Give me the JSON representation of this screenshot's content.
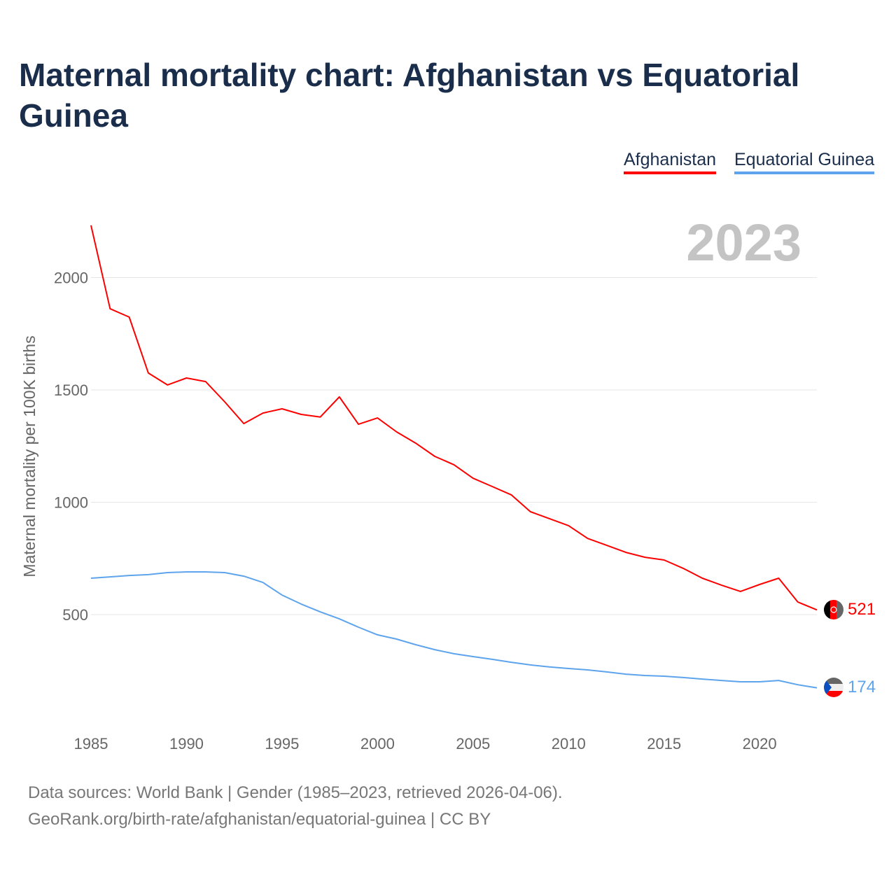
{
  "chart_data": {
    "type": "line",
    "title": "Maternal mortality chart: Afghanistan vs Equatorial Guinea",
    "xlabel": "",
    "ylabel": "Maternal mortality per 100K births",
    "year_label": "2023",
    "xlim": [
      1985,
      2023
    ],
    "ylim": [
      0,
      2250
    ],
    "grid": true,
    "legend_position": "top-right",
    "x_ticks": [
      1985,
      1990,
      1995,
      2000,
      2005,
      2010,
      2015,
      2020
    ],
    "y_ticks": [
      500,
      1000,
      1500,
      2000
    ],
    "x": [
      1985,
      1986,
      1987,
      1988,
      1989,
      1990,
      1991,
      1992,
      1993,
      1994,
      1995,
      1996,
      1997,
      1998,
      1999,
      2000,
      2001,
      2002,
      2003,
      2004,
      2005,
      2006,
      2007,
      2008,
      2009,
      2010,
      2011,
      2012,
      2013,
      2014,
      2015,
      2016,
      2017,
      2018,
      2019,
      2020,
      2021,
      2022,
      2023
    ],
    "series": [
      {
        "name": "Afghanistan",
        "color": "#ff0000",
        "end_label": "521",
        "values": [
          2232,
          1861,
          1824,
          1575,
          1522,
          1553,
          1537,
          1447,
          1350,
          1397,
          1416,
          1391,
          1379,
          1469,
          1347,
          1375,
          1313,
          1263,
          1204,
          1167,
          1107,
          1070,
          1033,
          958,
          927,
          896,
          839,
          808,
          777,
          755,
          743,
          706,
          662,
          631,
          603,
          634,
          662,
          556,
          521
        ]
      },
      {
        "name": "Equatorial Guinea",
        "color": "#5ea4ec",
        "end_label": "174",
        "values": [
          662,
          668,
          674,
          678,
          687,
          690,
          690,
          687,
          671,
          643,
          587,
          547,
          512,
          481,
          444,
          410,
          391,
          366,
          344,
          326,
          313,
          301,
          288,
          276,
          267,
          260,
          254,
          245,
          235,
          229,
          226,
          220,
          213,
          207,
          201,
          201,
          207,
          188,
          174
        ]
      }
    ]
  },
  "footer": {
    "line1": "Data sources: World Bank | Gender (1985–2023, retrieved 2026-04-06).",
    "line2": "GeoRank.org/birth-rate/afghanistan/equatorial-guinea | CC BY"
  }
}
